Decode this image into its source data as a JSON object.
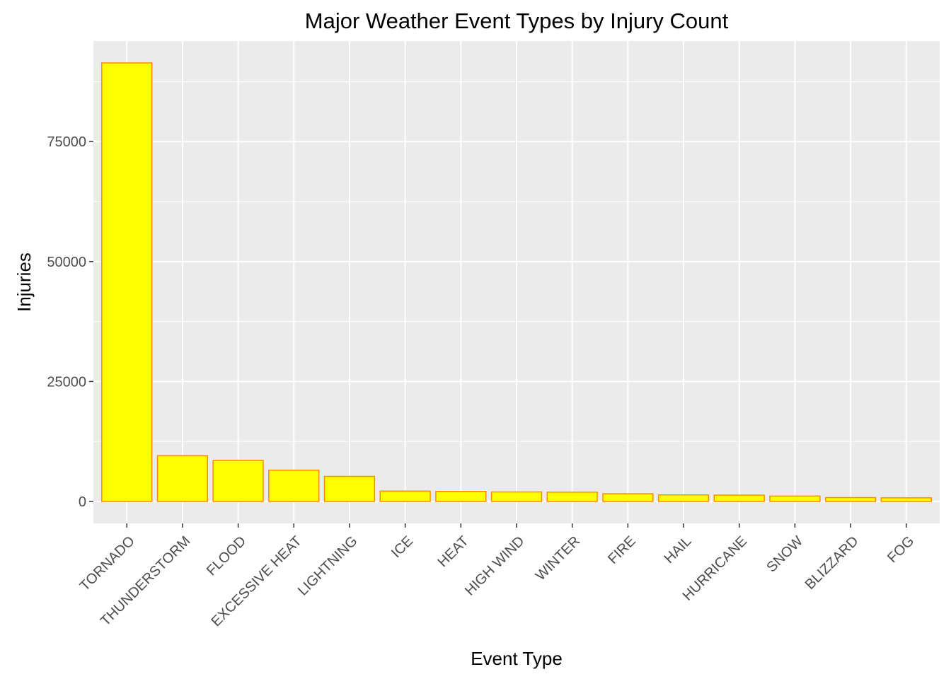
{
  "chart_data": {
    "type": "bar",
    "title": "Major Weather Event Types by Injury Count",
    "xlabel": "Event Type",
    "ylabel": "Injuries",
    "categories": [
      "TORNADO",
      "THUNDERSTORM",
      "FLOOD",
      "EXCESSIVE HEAT",
      "LIGHTNING",
      "ICE",
      "HEAT",
      "HIGH WIND",
      "WINTER",
      "FIRE",
      "HAIL",
      "HURRICANE",
      "SNOW",
      "BLIZZARD",
      "FOG"
    ],
    "values": [
      91400,
      9540,
      8580,
      6525,
      5230,
      2160,
      2100,
      1980,
      1940,
      1610,
      1370,
      1330,
      1130,
      810,
      760
    ],
    "ylim": [
      -4570,
      95970
    ],
    "yticks": [
      0,
      25000,
      50000,
      75000
    ],
    "ytick_labels": [
      "0",
      "25000",
      "50000",
      "75000"
    ],
    "grid": true,
    "colors": {
      "panel": "#ebebeb",
      "grid": "#ffffff",
      "bar_fill": "#ffff00",
      "bar_stroke": "#ff8c00",
      "tick": "#333333"
    }
  }
}
